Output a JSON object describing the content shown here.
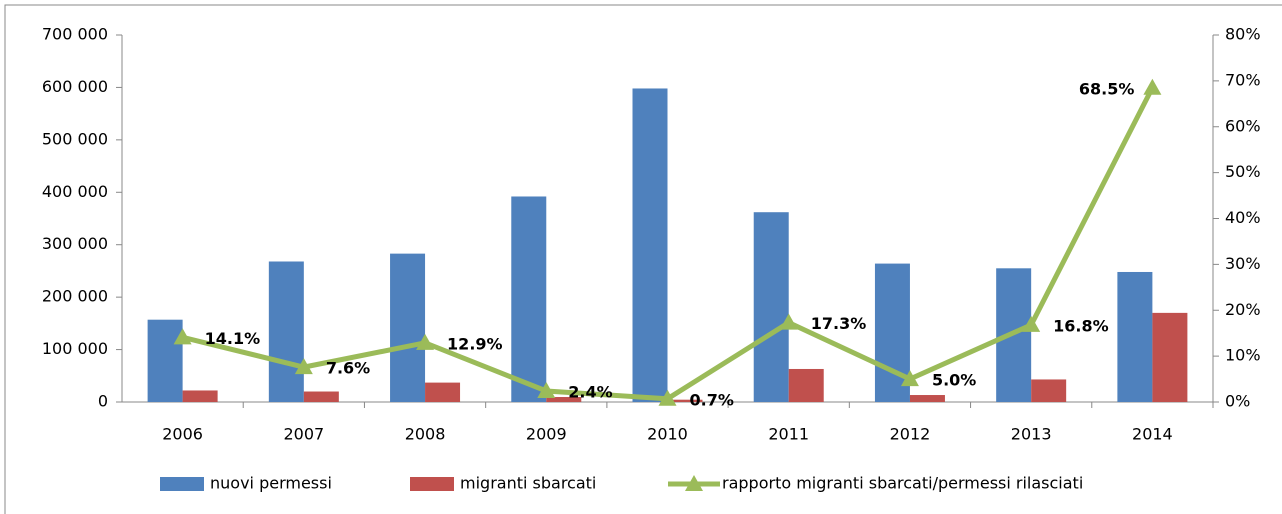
{
  "chart_data": {
    "type": "bar-line",
    "categories": [
      "2006",
      "2007",
      "2008",
      "2009",
      "2010",
      "2011",
      "2012",
      "2013",
      "2014"
    ],
    "series": [
      {
        "name": "nuovi permessi",
        "color": "#4f81bd",
        "values": [
          157000,
          268000,
          283000,
          392000,
          598000,
          362000,
          264000,
          255000,
          248000
        ]
      },
      {
        "name": "migranti sbarcati",
        "color": "#c0504d",
        "values": [
          22000,
          20000,
          37000,
          9500,
          4400,
          63000,
          13300,
          43000,
          170000
        ]
      },
      {
        "name": "rapporto migranti sbarcati/permessi rilasciati",
        "color": "#9bbb59",
        "axis": "y2",
        "values": [
          14.1,
          7.6,
          12.9,
          2.4,
          0.7,
          17.3,
          5.0,
          16.8,
          68.5
        ],
        "value_labels": [
          "14.1%",
          "7.6%",
          "12.9%",
          "2.4%",
          "0.7%",
          "17.3%",
          "5.0%",
          "16.8%",
          "68.5%"
        ]
      }
    ],
    "ylim": [
      0,
      700000
    ],
    "yticks": [
      0,
      {
        "value": 100000,
        "label": "100 000"
      },
      {
        "value": 200000,
        "label": "200 000"
      },
      {
        "value": 300000,
        "label": "300 000"
      },
      {
        "value": 400000,
        "label": "400 000"
      },
      {
        "value": 500000,
        "label": "500 000"
      },
      {
        "value": 600000,
        "label": "600 000"
      },
      {
        "value": 700000,
        "label": "700 000"
      }
    ],
    "y2lim": [
      0,
      80
    ],
    "y2ticks": [
      {
        "value": 0,
        "label": "0%"
      },
      {
        "value": 10,
        "label": "10%"
      },
      {
        "value": 20,
        "label": "20%"
      },
      {
        "value": 30,
        "label": "30%"
      },
      {
        "value": 40,
        "label": "40%"
      },
      {
        "value": 50,
        "label": "50%"
      },
      {
        "value": 60,
        "label": "60%"
      },
      {
        "value": 70,
        "label": "70%"
      },
      {
        "value": 80,
        "label": "80%"
      }
    ],
    "grid": false,
    "legend": "bottom"
  }
}
